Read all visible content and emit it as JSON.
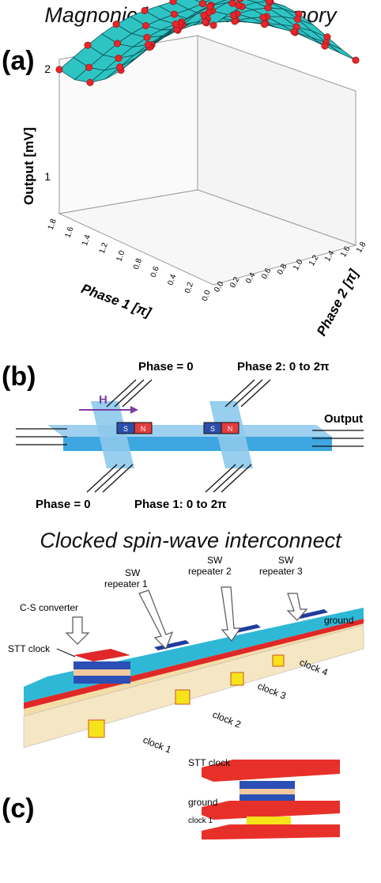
{
  "title_top": "Magnonic holographic memory",
  "title_bottom": "Clocked spin-wave interconnect",
  "panels": {
    "a": "(a)",
    "b": "(b)",
    "c": "(c)"
  },
  "chart_data": {
    "type": "surface3d",
    "zlabel": "Output [mV]",
    "xlabel": "Phase 1 [π]",
    "ylabel": "Phase 2 [π]",
    "z_ticks": [
      "1",
      "2"
    ],
    "x_ticks": [
      "0.0",
      "0.2",
      "0.4",
      "0.6",
      "0.8",
      "1.0",
      "1.2",
      "1.4",
      "1.6",
      "1.8"
    ],
    "y_ticks": [
      "0.0",
      "0.2",
      "0.4",
      "0.6",
      "0.8",
      "1.0",
      "1.2",
      "1.4",
      "1.6",
      "1.8"
    ],
    "surface_color": "#2ec4c4",
    "point_color": "#e8262b"
  },
  "diagram_b": {
    "field_label": "H",
    "phase0_top": "Phase = 0",
    "phase2": "Phase 2: 0 to 2π",
    "output": "Output",
    "phase0_bottom": "Phase = 0",
    "phase1": "Phase 1: 0 to 2π",
    "magnet_s": "S",
    "magnet_n": "N"
  },
  "diagram_c": {
    "cs_converter": "C-S converter",
    "stt_clock": "STT clock",
    "rep1_a": "SW",
    "rep1_b": "repeater 1",
    "rep2_a": "SW",
    "rep2_b": "repeater 2",
    "rep3_a": "SW",
    "rep3_b": "repeater 3",
    "ground": "ground",
    "clock1": "clock 1",
    "clock2": "clock 2",
    "clock3": "clock 3",
    "clock4": "clock 4",
    "inset_stt": "STT clock",
    "inset_ground": "ground",
    "inset_clock1": "clock 1"
  }
}
